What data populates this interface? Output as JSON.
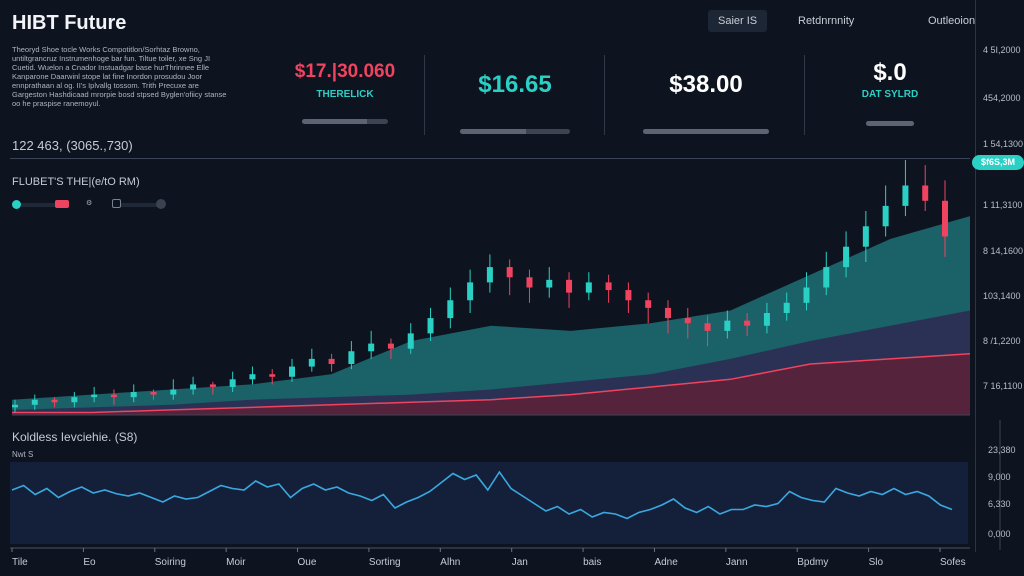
{
  "header": {
    "title": "HIBT Future",
    "description": "Theoryd Shoe tocle Works Compotitlon/Sorhtaz Browno, untiltgrancruz Instrumenhoge bar fun. Tiltue toiler, xe Sng JI Cuetid. Wuelon a Cnador Instuadgar base hurThrinnee Elle Kanparone Daarwinl stope lat fine Inordon prosudou Joor ennprathaan al og. II's Iplvallg tossom. Trith Precuxe are Gargeston Hashdicaad mrorpie bosd stpsed Byglen'ofiicy stanse oo he praspise ranemoyul.",
    "coords": "122 463, (3065.,730)"
  },
  "tabs": [
    {
      "label": "Saier IS",
      "active": true
    },
    {
      "label": "Retdnrnnity",
      "active": false
    },
    {
      "label": "Outleoion",
      "active": false
    }
  ],
  "stats": [
    {
      "value": "$17.|30.060",
      "label": "THERELICK",
      "value_color": "#f0435f",
      "label_color": "#2ad0c4",
      "progress": 0.75
    },
    {
      "value": "$16.65",
      "label": "",
      "value_color": "#2ad0c4",
      "label_color": "#2ad0c4",
      "progress": 0.6
    },
    {
      "value": "$38.00",
      "label": "",
      "value_color": "#ffffff",
      "label_color": "#2ad0c4",
      "progress": 1.0
    },
    {
      "value": "$.0",
      "label": "DAT SYLRD",
      "value_color": "#ffffff",
      "label_color": "#2ad0c4",
      "progress": 1.0
    }
  ],
  "chart": {
    "label": "FLUBET'S THE|(e/tO RM)",
    "price_tag": "$f6S,3M",
    "y_ticks": [
      "4 5I,2000",
      "454,2000",
      "1 54,1300",
      "1 11,3100",
      "8 14,1600",
      "103,1400",
      "8 /1,2200",
      "7 16,1100"
    ]
  },
  "colors": {
    "up": "#2ad0c4",
    "down": "#f0435f",
    "teal_area": "#1f6f76",
    "purple_area": "#2c2c52",
    "red_area": "#5a2238",
    "ind_line": "#3aa8e0"
  },
  "chart_data": [
    {
      "type": "candlestick",
      "candles": [
        [
          3,
          6,
          1,
          4
        ],
        [
          4,
          8,
          2,
          6
        ],
        [
          6,
          7,
          3,
          5
        ],
        [
          5,
          9,
          3,
          7
        ],
        [
          7,
          11,
          5,
          8
        ],
        [
          8,
          10,
          4,
          7
        ],
        [
          7,
          12,
          5,
          9
        ],
        [
          9,
          10,
          6,
          8
        ],
        [
          8,
          14,
          6,
          10
        ],
        [
          10,
          15,
          8,
          12
        ],
        [
          12,
          13,
          8,
          11
        ],
        [
          11,
          17,
          9,
          14
        ],
        [
          14,
          19,
          12,
          16
        ],
        [
          16,
          18,
          12,
          15
        ],
        [
          15,
          22,
          13,
          19
        ],
        [
          19,
          26,
          17,
          22
        ],
        [
          22,
          24,
          17,
          20
        ],
        [
          20,
          29,
          18,
          25
        ],
        [
          25,
          33,
          22,
          28
        ],
        [
          28,
          30,
          22,
          26
        ],
        [
          26,
          36,
          24,
          32
        ],
        [
          32,
          42,
          29,
          38
        ],
        [
          38,
          50,
          34,
          45
        ],
        [
          45,
          57,
          40,
          52
        ],
        [
          52,
          63,
          48,
          58
        ],
        [
          58,
          61,
          47,
          54
        ],
        [
          54,
          57,
          44,
          50
        ],
        [
          50,
          58,
          46,
          53
        ],
        [
          53,
          56,
          42,
          48
        ],
        [
          48,
          56,
          45,
          52
        ],
        [
          52,
          55,
          44,
          49
        ],
        [
          49,
          52,
          40,
          45
        ],
        [
          45,
          48,
          36,
          42
        ],
        [
          42,
          45,
          32,
          38
        ],
        [
          38,
          42,
          30,
          36
        ],
        [
          36,
          39,
          27,
          33
        ],
        [
          33,
          41,
          30,
          37
        ],
        [
          37,
          40,
          31,
          35
        ],
        [
          35,
          44,
          32,
          40
        ],
        [
          40,
          48,
          37,
          44
        ],
        [
          44,
          56,
          41,
          50
        ],
        [
          50,
          64,
          47,
          58
        ],
        [
          58,
          72,
          54,
          66
        ],
        [
          66,
          80,
          60,
          74
        ],
        [
          74,
          90,
          70,
          82
        ],
        [
          82,
          100,
          78,
          90
        ],
        [
          90,
          98,
          80,
          84
        ],
        [
          84,
          92,
          62,
          70
        ]
      ]
    },
    {
      "type": "area",
      "series": [
        {
          "key": "teal",
          "values": [
            6,
            8,
            10,
            12,
            16,
            29,
            35,
            33,
            36,
            41,
            55,
            69,
            78
          ]
        },
        {
          "key": "purple",
          "values": [
            2,
            3,
            4,
            6,
            7,
            8,
            10,
            13,
            16,
            22,
            29,
            35,
            41
          ]
        },
        {
          "key": "red",
          "values": [
            1,
            1,
            2,
            3,
            4,
            5,
            6,
            8,
            11,
            14,
            20,
            22,
            24
          ]
        }
      ]
    },
    {
      "type": "line",
      "title": "Koldless Ievciehie. (S8)",
      "subtitle": "Nwt S",
      "y_ticks": [
        "23,380",
        "9,000",
        "6,330",
        "0,000"
      ],
      "x_ticks": [
        "Tile",
        "Eo",
        "Soiring",
        "Moir",
        "Oue",
        "Sorting",
        "Alhn",
        "Jan",
        "bais",
        "Adne",
        "Jann",
        "Bpdmy",
        "Slo",
        "Sofes"
      ],
      "values": [
        60,
        66,
        54,
        62,
        50,
        58,
        64,
        56,
        60,
        55,
        52,
        56,
        50,
        44,
        52,
        48,
        50,
        58,
        66,
        62,
        60,
        72,
        64,
        68,
        50,
        62,
        68,
        60,
        64,
        56,
        52,
        46,
        54,
        36,
        44,
        50,
        58,
        70,
        82,
        74,
        80,
        60,
        84,
        62,
        52,
        42,
        32,
        38,
        28,
        34,
        24,
        30,
        28,
        22,
        30,
        34,
        40,
        48,
        36,
        30,
        38,
        28,
        34,
        34,
        40,
        38,
        42,
        58,
        50,
        46,
        44,
        62,
        56,
        52,
        58,
        54,
        62,
        54,
        58,
        52,
        40,
        34
      ]
    }
  ]
}
